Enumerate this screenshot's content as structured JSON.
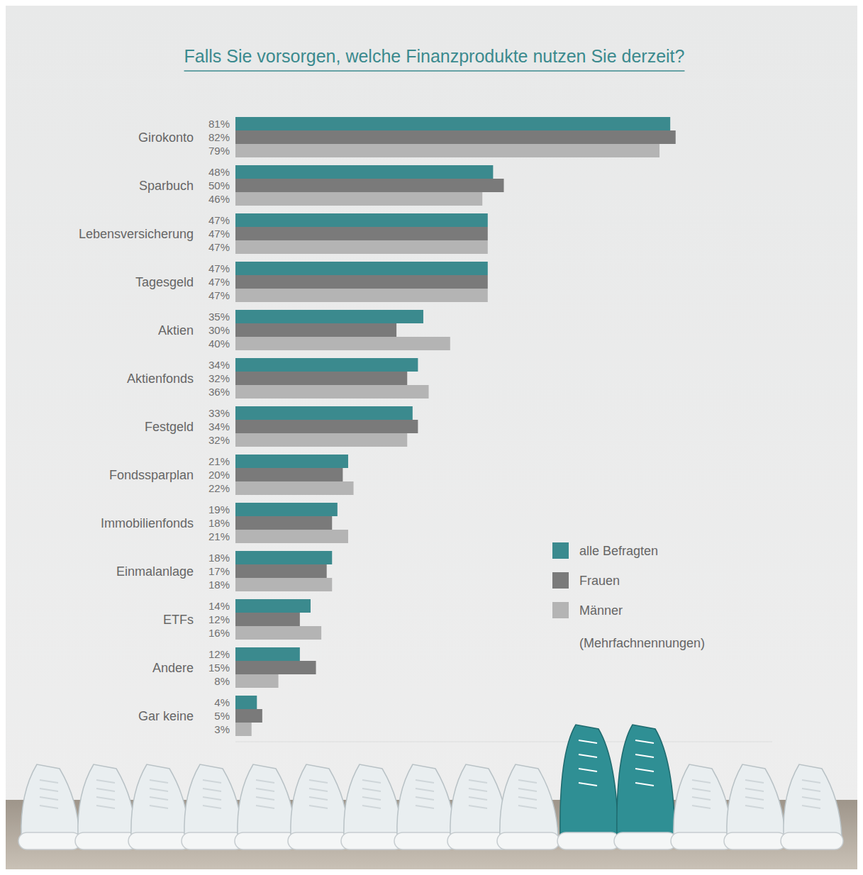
{
  "chart_data": {
    "type": "bar",
    "orientation": "horizontal",
    "title": "Falls Sie vorsorgen, welche Finanzprodukte nutzen Sie derzeit?",
    "annotation": "(Mehrfachnennungen)",
    "categories": [
      "Girokonto",
      "Sparbuch",
      "Lebensversicherung",
      "Tagesgeld",
      "Aktien",
      "Aktienfonds",
      "Festgeld",
      "Fondssparplan",
      "Immobilienfonds",
      "Einmalanlage",
      "ETFs",
      "Andere",
      "Gar keine"
    ],
    "series": [
      {
        "name": "alle Befragten",
        "color": "#3b8a8e",
        "values": [
          81,
          48,
          47,
          47,
          35,
          34,
          33,
          21,
          19,
          18,
          14,
          12,
          4
        ],
        "value_labels": [
          "81%",
          "48%",
          "47%",
          "47%",
          "35%",
          "34%",
          "33%",
          "21%",
          "19%",
          "18%",
          "14%",
          "12%",
          "4%"
        ]
      },
      {
        "name": "Frauen",
        "color": "#7a7a7a",
        "values": [
          82,
          50,
          47,
          47,
          30,
          32,
          34,
          20,
          18,
          17,
          12,
          15,
          5
        ],
        "value_labels": [
          "82%",
          "50%",
          "47%",
          "47%",
          "30%",
          "32%",
          "34%",
          "20%",
          "18%",
          "17%",
          "12%",
          "15%",
          "5%"
        ]
      },
      {
        "name": "Männer",
        "color": "#b4b4b4",
        "values": [
          79,
          46,
          47,
          47,
          40,
          36,
          32,
          22,
          21,
          18,
          16,
          8,
          3
        ],
        "value_labels": [
          "79%",
          "46%",
          "47%",
          "47%",
          "40%",
          "36%",
          "32%",
          "22%",
          "21%",
          "18%",
          "16%",
          "8%",
          "3%"
        ]
      }
    ],
    "xlim": [
      0,
      100
    ],
    "data_labels": true,
    "tick_labels": false,
    "grid": false,
    "legend": "right"
  }
}
